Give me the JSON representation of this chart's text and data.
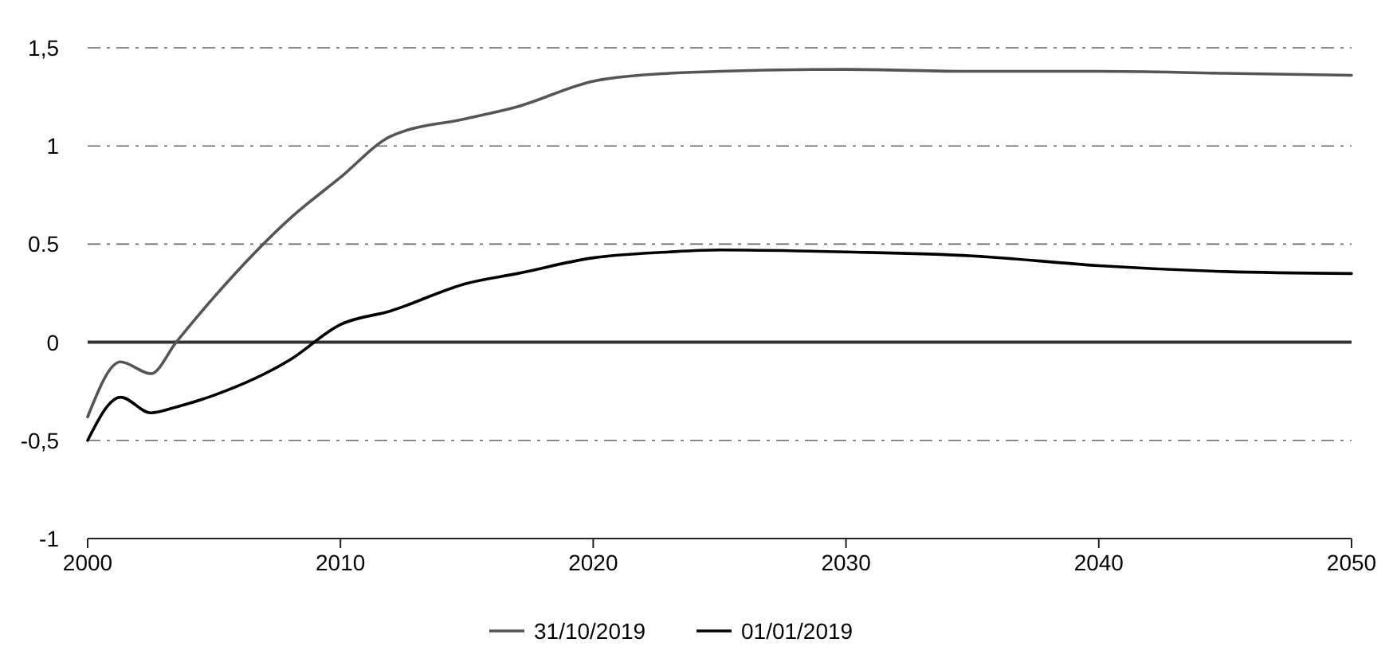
{
  "chart_data": {
    "type": "line",
    "x": [
      2000,
      2001.3,
      2002.5,
      2003.5,
      2005,
      2008,
      2010,
      2012,
      2015,
      2017,
      2020,
      2023,
      2025,
      2030,
      2035,
      2040,
      2045,
      2050
    ],
    "series": [
      {
        "name": "31/10/2019",
        "color": "#555555",
        "values": [
          -0.38,
          -0.1,
          -0.16,
          0,
          0.23,
          0.63,
          0.84,
          1.05,
          1.14,
          1.2,
          1.33,
          1.37,
          1.38,
          1.39,
          1.38,
          1.38,
          1.37,
          1.36
        ]
      },
      {
        "name": "01/01/2019",
        "color": "#000000",
        "values": [
          -0.5,
          -0.28,
          -0.36,
          -0.33,
          -0.27,
          -0.09,
          0.09,
          0.16,
          0.3,
          0.35,
          0.43,
          0.46,
          0.47,
          0.46,
          0.44,
          0.39,
          0.36,
          0.35
        ]
      }
    ],
    "xlim": [
      2000,
      2050
    ],
    "xticks": [
      2000,
      2010,
      2020,
      2030,
      2040,
      2050
    ],
    "ylim": [
      -1,
      1.5
    ],
    "yticks": [
      {
        "value": -1,
        "label": "-1"
      },
      {
        "value": -0.5,
        "label": "-0,5"
      },
      {
        "value": 0,
        "label": "0"
      },
      {
        "value": 0.5,
        "label": "0.5"
      },
      {
        "value": 1,
        "label": "1"
      },
      {
        "value": 1.5,
        "label": "1,5"
      }
    ],
    "grid": "y",
    "legend": "bottom",
    "line_style": "solid",
    "ref_lines": [
      {
        "axis": "y",
        "value": 0,
        "label": null,
        "color": "#333333"
      }
    ]
  }
}
